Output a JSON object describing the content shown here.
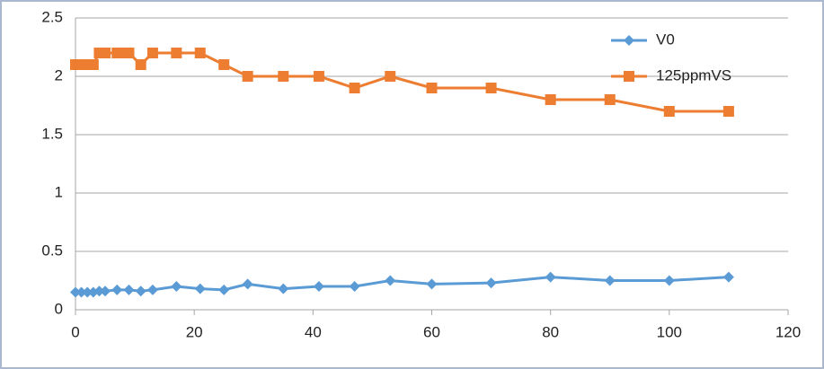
{
  "chart_data": {
    "type": "line",
    "series": [
      {
        "name": "V0",
        "color": "#5b9bd5",
        "marker": "diamond",
        "x": [
          0,
          1,
          2,
          3,
          4,
          5,
          7,
          9,
          11,
          13,
          17,
          21,
          25,
          29,
          35,
          41,
          47,
          53,
          60,
          70,
          80,
          90,
          100,
          110
        ],
        "values": [
          0.15,
          0.15,
          0.15,
          0.15,
          0.16,
          0.16,
          0.17,
          0.17,
          0.16,
          0.17,
          0.2,
          0.18,
          0.17,
          0.22,
          0.18,
          0.2,
          0.2,
          0.25,
          0.22,
          0.23,
          0.28,
          0.25,
          0.25,
          0.28
        ]
      },
      {
        "name": "125ppmVS",
        "color": "#ed7d31",
        "marker": "square",
        "x": [
          0,
          1,
          2,
          3,
          4,
          5,
          7,
          8,
          9,
          11,
          13,
          17,
          21,
          25,
          29,
          35,
          41,
          47,
          53,
          60,
          70,
          80,
          90,
          100,
          110
        ],
        "values": [
          2.1,
          2.1,
          2.1,
          2.1,
          2.2,
          2.2,
          2.2,
          2.2,
          2.2,
          2.1,
          2.2,
          2.2,
          2.2,
          2.1,
          2.0,
          2.0,
          2.0,
          1.9,
          2.0,
          1.9,
          1.9,
          1.8,
          1.8,
          1.7,
          1.7
        ]
      }
    ],
    "xlim": [
      0,
      120
    ],
    "xticks": [
      0,
      20,
      40,
      60,
      80,
      100,
      120
    ],
    "ylim": [
      0,
      2.5
    ],
    "yticks": [
      0,
      0.5,
      1,
      1.5,
      2,
      2.5
    ],
    "grid": true,
    "legend": "top-right"
  }
}
